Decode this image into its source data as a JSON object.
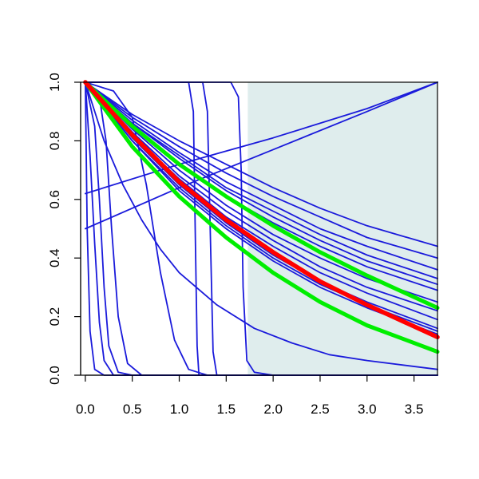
{
  "chart_data": {
    "type": "line",
    "title": "",
    "xlabel": "",
    "ylabel": "",
    "xlim": [
      -0.05,
      3.75
    ],
    "ylim": [
      0.0,
      1.0
    ],
    "grid": false,
    "legend": "none",
    "x_ticks": [
      "0.0",
      "0.5",
      "1.0",
      "1.5",
      "2.0",
      "2.5",
      "3.0",
      "3.5"
    ],
    "x_tick_values": [
      0.0,
      0.5,
      1.0,
      1.5,
      2.0,
      2.5,
      3.0,
      3.5
    ],
    "y_ticks": [
      "0.0",
      "0.2",
      "0.4",
      "0.6",
      "0.8",
      "1.0"
    ],
    "y_tick_values": [
      0.0,
      0.2,
      0.4,
      0.6,
      0.8,
      1.0
    ],
    "shaded_region": {
      "x_from": 1.73,
      "x_to": 3.75,
      "y_from": 0.0,
      "y_to": 1.0,
      "color": "#dfeded"
    },
    "colors": {
      "blue": "#1a1adb",
      "red": "#ff0000",
      "green": "#00ee00"
    },
    "series": [
      {
        "color": "blue",
        "points": [
          [
            0.0,
            1.0
          ],
          [
            0.5,
            0.89
          ],
          [
            1.0,
            0.8
          ],
          [
            1.5,
            0.72
          ],
          [
            2.0,
            0.64
          ],
          [
            2.5,
            0.57
          ],
          [
            3.0,
            0.51
          ],
          [
            3.75,
            0.44
          ]
        ]
      },
      {
        "color": "blue",
        "points": [
          [
            0.0,
            1.0
          ],
          [
            0.5,
            0.88
          ],
          [
            1.0,
            0.78
          ],
          [
            1.5,
            0.69
          ],
          [
            2.0,
            0.61
          ],
          [
            2.5,
            0.54
          ],
          [
            3.0,
            0.47
          ],
          [
            3.75,
            0.4
          ]
        ]
      },
      {
        "color": "blue",
        "points": [
          [
            0.0,
            1.0
          ],
          [
            0.5,
            0.87
          ],
          [
            1.0,
            0.76
          ],
          [
            1.5,
            0.66
          ],
          [
            2.0,
            0.58
          ],
          [
            2.5,
            0.5
          ],
          [
            3.0,
            0.44
          ],
          [
            3.75,
            0.36
          ]
        ]
      },
      {
        "color": "blue",
        "points": [
          [
            0.0,
            1.0
          ],
          [
            0.5,
            0.86
          ],
          [
            1.0,
            0.75
          ],
          [
            1.5,
            0.64
          ],
          [
            2.0,
            0.56
          ],
          [
            2.5,
            0.48
          ],
          [
            3.0,
            0.41
          ],
          [
            3.75,
            0.33
          ]
        ]
      },
      {
        "color": "blue",
        "points": [
          [
            0.0,
            1.0
          ],
          [
            0.5,
            0.86
          ],
          [
            1.0,
            0.74
          ],
          [
            1.5,
            0.63
          ],
          [
            2.0,
            0.54
          ],
          [
            2.5,
            0.46
          ],
          [
            3.0,
            0.39
          ],
          [
            3.75,
            0.31
          ]
        ]
      },
      {
        "color": "blue",
        "points": [
          [
            0.0,
            1.0
          ],
          [
            0.5,
            0.85
          ],
          [
            1.0,
            0.72
          ],
          [
            1.5,
            0.61
          ],
          [
            2.0,
            0.52
          ],
          [
            2.5,
            0.44
          ],
          [
            3.0,
            0.37
          ],
          [
            3.75,
            0.29
          ]
        ]
      },
      {
        "color": "blue",
        "points": [
          [
            0.0,
            1.0
          ],
          [
            0.5,
            0.84
          ],
          [
            1.0,
            0.7
          ],
          [
            1.5,
            0.58
          ],
          [
            2.0,
            0.48
          ],
          [
            2.5,
            0.4
          ],
          [
            3.0,
            0.33
          ],
          [
            3.75,
            0.25
          ]
        ]
      },
      {
        "color": "blue",
        "points": [
          [
            0.0,
            1.0
          ],
          [
            0.5,
            0.83
          ],
          [
            1.0,
            0.68
          ],
          [
            1.5,
            0.56
          ],
          [
            2.0,
            0.46
          ],
          [
            2.5,
            0.37
          ],
          [
            3.0,
            0.3
          ],
          [
            3.75,
            0.22
          ]
        ]
      },
      {
        "color": "blue",
        "points": [
          [
            0.0,
            1.0
          ],
          [
            0.5,
            0.82
          ],
          [
            1.0,
            0.67
          ],
          [
            1.5,
            0.54
          ],
          [
            2.0,
            0.44
          ],
          [
            2.5,
            0.35
          ],
          [
            3.0,
            0.28
          ],
          [
            3.75,
            0.19
          ]
        ]
      },
      {
        "color": "blue",
        "points": [
          [
            0.0,
            1.0
          ],
          [
            0.5,
            0.81
          ],
          [
            1.0,
            0.65
          ],
          [
            1.5,
            0.52
          ],
          [
            2.0,
            0.41
          ],
          [
            2.5,
            0.32
          ],
          [
            3.0,
            0.25
          ],
          [
            3.75,
            0.16
          ]
        ]
      },
      {
        "color": "blue",
        "points": [
          [
            0.0,
            1.0
          ],
          [
            0.5,
            0.8
          ],
          [
            1.0,
            0.63
          ],
          [
            1.5,
            0.5
          ],
          [
            2.0,
            0.39
          ],
          [
            2.5,
            0.3
          ],
          [
            3.0,
            0.23
          ],
          [
            3.75,
            0.14
          ]
        ]
      },
      {
        "color": "blue",
        "points": [
          [
            0.0,
            1.0
          ],
          [
            0.5,
            0.8
          ],
          [
            1.0,
            0.64
          ],
          [
            1.5,
            0.51
          ],
          [
            2.0,
            0.4
          ],
          [
            2.5,
            0.31
          ],
          [
            3.0,
            0.24
          ],
          [
            3.75,
            0.15
          ]
        ]
      },
      {
        "color": "blue",
        "points": [
          [
            0.0,
            0.62
          ],
          [
            1.0,
            0.72
          ],
          [
            2.0,
            0.81
          ],
          [
            3.0,
            0.91
          ],
          [
            3.75,
            1.0
          ]
        ]
      },
      {
        "color": "blue",
        "points": [
          [
            0.0,
            0.5
          ],
          [
            1.0,
            0.64
          ],
          [
            2.0,
            0.77
          ],
          [
            3.0,
            0.9
          ],
          [
            3.75,
            1.0
          ]
        ]
      },
      {
        "color": "blue",
        "points": [
          [
            0.0,
            1.0
          ],
          [
            0.2,
            0.8
          ],
          [
            0.4,
            0.65
          ],
          [
            0.6,
            0.53
          ],
          [
            0.8,
            0.43
          ],
          [
            1.0,
            0.35
          ],
          [
            1.4,
            0.24
          ],
          [
            1.8,
            0.16
          ],
          [
            2.2,
            0.11
          ],
          [
            2.6,
            0.07
          ],
          [
            3.0,
            0.05
          ],
          [
            3.75,
            0.02
          ]
        ]
      },
      {
        "color": "blue",
        "points": [
          [
            0.0,
            1.0
          ],
          [
            0.02,
            0.5
          ],
          [
            0.05,
            0.15
          ],
          [
            0.1,
            0.02
          ],
          [
            0.2,
            0.0
          ],
          [
            3.75,
            0.0
          ]
        ]
      },
      {
        "color": "blue",
        "points": [
          [
            0.0,
            1.0
          ],
          [
            0.05,
            0.75
          ],
          [
            0.1,
            0.45
          ],
          [
            0.15,
            0.18
          ],
          [
            0.2,
            0.05
          ],
          [
            0.3,
            0.0
          ],
          [
            3.75,
            0.0
          ]
        ]
      },
      {
        "color": "blue",
        "points": [
          [
            0.0,
            1.0
          ],
          [
            0.1,
            0.85
          ],
          [
            0.15,
            0.6
          ],
          [
            0.2,
            0.3
          ],
          [
            0.25,
            0.1
          ],
          [
            0.35,
            0.01
          ],
          [
            0.5,
            0.0
          ],
          [
            3.75,
            0.0
          ]
        ]
      },
      {
        "color": "blue",
        "points": [
          [
            0.0,
            1.0
          ],
          [
            0.15,
            0.95
          ],
          [
            0.22,
            0.8
          ],
          [
            0.28,
            0.5
          ],
          [
            0.35,
            0.2
          ],
          [
            0.45,
            0.04
          ],
          [
            0.6,
            0.0
          ],
          [
            3.75,
            0.0
          ]
        ]
      },
      {
        "color": "blue",
        "points": [
          [
            0.0,
            1.0
          ],
          [
            0.3,
            0.97
          ],
          [
            0.5,
            0.88
          ],
          [
            0.65,
            0.65
          ],
          [
            0.8,
            0.35
          ],
          [
            0.95,
            0.12
          ],
          [
            1.1,
            0.02
          ],
          [
            1.3,
            0.0
          ],
          [
            3.75,
            0.0
          ]
        ]
      },
      {
        "color": "blue",
        "points": [
          [
            0.0,
            1.0
          ],
          [
            1.1,
            1.0
          ],
          [
            1.15,
            0.9
          ],
          [
            1.17,
            0.5
          ],
          [
            1.19,
            0.1
          ],
          [
            1.21,
            0.0
          ],
          [
            3.75,
            0.0
          ]
        ]
      },
      {
        "color": "blue",
        "points": [
          [
            0.0,
            1.0
          ],
          [
            1.25,
            1.0
          ],
          [
            1.3,
            0.9
          ],
          [
            1.33,
            0.5
          ],
          [
            1.36,
            0.08
          ],
          [
            1.4,
            0.0
          ],
          [
            3.75,
            0.0
          ]
        ]
      },
      {
        "color": "blue",
        "points": [
          [
            0.0,
            1.0
          ],
          [
            1.55,
            1.0
          ],
          [
            1.63,
            0.95
          ],
          [
            1.66,
            0.7
          ],
          [
            1.68,
            0.3
          ],
          [
            1.72,
            0.05
          ],
          [
            1.8,
            0.01
          ],
          [
            2.0,
            0.0
          ],
          [
            3.75,
            0.0
          ]
        ]
      },
      {
        "color": "red",
        "points": [
          [
            0.0,
            1.0
          ],
          [
            0.5,
            0.82
          ],
          [
            1.0,
            0.66
          ],
          [
            1.5,
            0.53
          ],
          [
            2.0,
            0.42
          ],
          [
            2.5,
            0.32
          ],
          [
            3.0,
            0.24
          ],
          [
            3.75,
            0.13
          ]
        ]
      },
      {
        "color": "green",
        "points": [
          [
            0.0,
            1.0
          ],
          [
            0.5,
            0.85
          ],
          [
            1.0,
            0.72
          ],
          [
            1.5,
            0.61
          ],
          [
            2.0,
            0.51
          ],
          [
            2.5,
            0.42
          ],
          [
            3.0,
            0.34
          ],
          [
            3.75,
            0.23
          ]
        ]
      },
      {
        "color": "green",
        "points": [
          [
            0.0,
            1.0
          ],
          [
            0.5,
            0.78
          ],
          [
            1.0,
            0.61
          ],
          [
            1.5,
            0.47
          ],
          [
            2.0,
            0.35
          ],
          [
            2.5,
            0.25
          ],
          [
            3.0,
            0.17
          ],
          [
            3.75,
            0.08
          ]
        ]
      }
    ]
  }
}
